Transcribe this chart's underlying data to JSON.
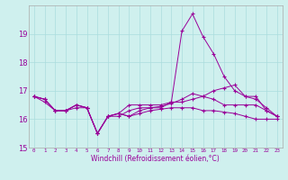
{
  "xlabel": "Windchill (Refroidissement éolien,°C)",
  "background_color": "#cff0ee",
  "grid_color": "#aadddd",
  "line_color": "#990099",
  "x": [
    0,
    1,
    2,
    3,
    4,
    5,
    6,
    7,
    8,
    9,
    10,
    11,
    12,
    13,
    14,
    15,
    16,
    17,
    18,
    19,
    20,
    21,
    22,
    23
  ],
  "line1": [
    16.8,
    16.7,
    16.3,
    16.3,
    16.5,
    16.4,
    15.5,
    16.1,
    16.2,
    16.1,
    16.3,
    16.4,
    16.4,
    16.6,
    19.1,
    19.7,
    18.9,
    18.3,
    17.5,
    17.0,
    16.8,
    16.8,
    16.3,
    16.1
  ],
  "line2": [
    16.8,
    16.7,
    16.3,
    16.3,
    16.5,
    16.4,
    15.5,
    16.1,
    16.2,
    16.5,
    16.5,
    16.5,
    16.5,
    16.6,
    16.6,
    16.7,
    16.8,
    17.0,
    17.1,
    17.2,
    16.8,
    16.7,
    16.4,
    16.1
  ],
  "line3": [
    16.8,
    16.7,
    16.3,
    16.3,
    16.5,
    16.4,
    15.5,
    16.1,
    16.2,
    16.1,
    16.2,
    16.3,
    16.35,
    16.4,
    16.4,
    16.4,
    16.3,
    16.3,
    16.25,
    16.2,
    16.1,
    16.0,
    16.0,
    16.0
  ],
  "line4": [
    16.8,
    16.6,
    16.3,
    16.3,
    16.4,
    16.4,
    15.5,
    16.1,
    16.1,
    16.3,
    16.4,
    16.4,
    16.45,
    16.55,
    16.7,
    16.9,
    16.8,
    16.7,
    16.5,
    16.5,
    16.5,
    16.5,
    16.3,
    16.1
  ],
  "ylim": [
    15.0,
    20.0
  ],
  "yticks": [
    15,
    16,
    17,
    18,
    19
  ],
  "xticks": [
    0,
    1,
    2,
    3,
    4,
    5,
    6,
    7,
    8,
    9,
    10,
    11,
    12,
    13,
    14,
    15,
    16,
    17,
    18,
    19,
    20,
    21,
    22,
    23
  ]
}
